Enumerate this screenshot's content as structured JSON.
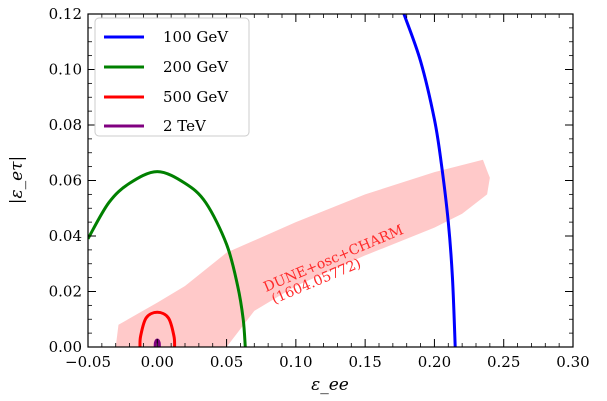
{
  "chart_data": {
    "type": "line",
    "xlabel": "ε_ee",
    "ylabel": "|ε_eτ|",
    "xlim": [
      -0.05,
      0.3
    ],
    "ylim": [
      0.0,
      0.12
    ],
    "x_ticks": [
      "−0.05",
      "0.00",
      "0.05",
      "0.10",
      "0.15",
      "0.20",
      "0.25",
      "0.30"
    ],
    "y_ticks": [
      "0.00",
      "0.02",
      "0.04",
      "0.06",
      "0.08",
      "0.10",
      "0.12"
    ],
    "grid": false,
    "legend_position": "top-left",
    "series": [
      {
        "name": "100 GeV",
        "color": "#0000ff",
        "points": [
          [
            0.178,
            0.12
          ],
          [
            0.19,
            0.103
          ],
          [
            0.2,
            0.082
          ],
          [
            0.205,
            0.066
          ],
          [
            0.21,
            0.045
          ],
          [
            0.213,
            0.025
          ],
          [
            0.215,
            0.0
          ]
        ]
      },
      {
        "name": "200 GeV",
        "color": "#008000",
        "points": [
          [
            -0.05,
            0.039
          ],
          [
            -0.035,
            0.052
          ],
          [
            -0.02,
            0.059
          ],
          [
            0.0,
            0.0632
          ],
          [
            0.02,
            0.059
          ],
          [
            0.035,
            0.052
          ],
          [
            0.05,
            0.037
          ],
          [
            0.058,
            0.022
          ],
          [
            0.062,
            0.01
          ],
          [
            0.0635,
            0.0
          ]
        ]
      },
      {
        "name": "500 GeV",
        "color": "#ff0000",
        "points": [
          [
            -0.0125,
            0.0
          ],
          [
            -0.012,
            0.004
          ],
          [
            -0.008,
            0.0105
          ],
          [
            0.0,
            0.0125
          ],
          [
            0.008,
            0.0105
          ],
          [
            0.012,
            0.004
          ],
          [
            0.0125,
            0.0
          ]
        ]
      },
      {
        "name": "2 TeV",
        "color": "#800080",
        "points": [
          [
            -0.0015,
            0.0
          ],
          [
            -0.0013,
            0.0016
          ],
          [
            0.0,
            0.0025
          ],
          [
            0.0013,
            0.0016
          ],
          [
            0.0015,
            0.0
          ]
        ]
      }
    ],
    "regions": [
      {
        "label_line1": "DUNE+osc+CHARM",
        "label_line2": "(1604.05772)",
        "color": "#ffc9c9",
        "polygon": [
          [
            -0.03,
            0.0
          ],
          [
            -0.028,
            0.008
          ],
          [
            0.0,
            0.016
          ],
          [
            0.02,
            0.022
          ],
          [
            0.05,
            0.034
          ],
          [
            0.1,
            0.045
          ],
          [
            0.15,
            0.055
          ],
          [
            0.2,
            0.063
          ],
          [
            0.235,
            0.0675
          ],
          [
            0.238,
            0.0635
          ],
          [
            0.24,
            0.061
          ],
          [
            0.238,
            0.055
          ],
          [
            0.22,
            0.048
          ],
          [
            0.2,
            0.043
          ],
          [
            0.15,
            0.033
          ],
          [
            0.1,
            0.022
          ],
          [
            0.07,
            0.013
          ],
          [
            0.05,
            0.0
          ],
          [
            0.0,
            0.0
          ]
        ]
      }
    ]
  }
}
